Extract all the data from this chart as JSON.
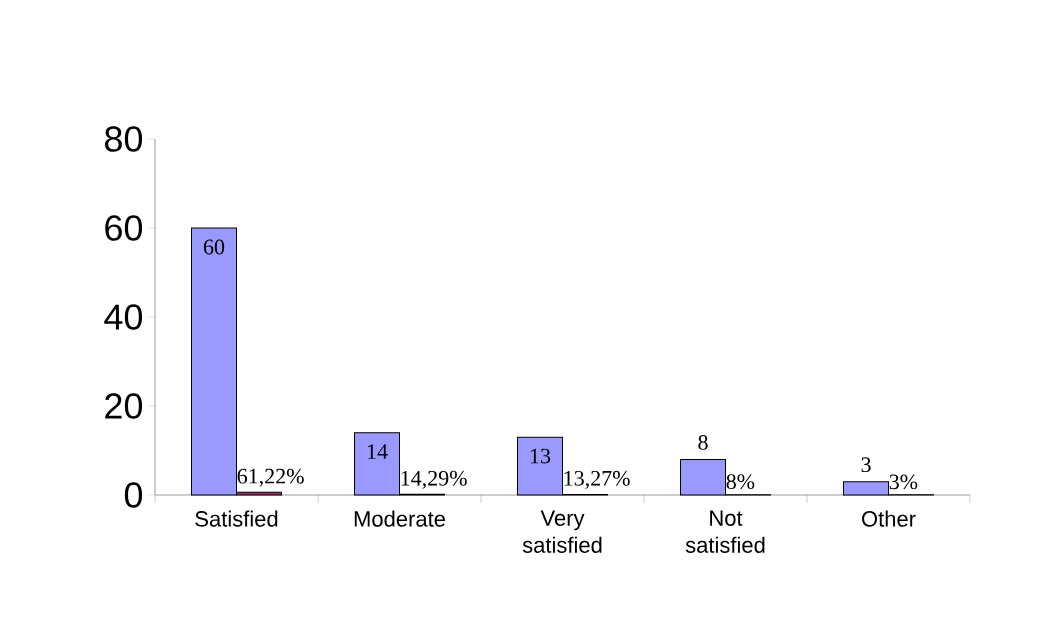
{
  "chart_data": {
    "type": "bar",
    "categories": [
      "Satisfied",
      "Moderate",
      "Very satisfied",
      "Not satisfied",
      "Other"
    ],
    "series": [
      {
        "color": "#9999ff",
        "values": [
          60,
          14,
          13,
          8,
          3
        ],
        "data_labels": true
      },
      {
        "color": "#993366",
        "values": [
          0.6122,
          0.1429,
          0.1327,
          0.08,
          0.03
        ],
        "value_labels": [
          "61,22%",
          "14,29%",
          "13,27%",
          "8%",
          "3%"
        ]
      }
    ],
    "ylim": [
      0,
      80
    ],
    "yticks": [
      0,
      20,
      40,
      60,
      80
    ],
    "grid": false
  }
}
